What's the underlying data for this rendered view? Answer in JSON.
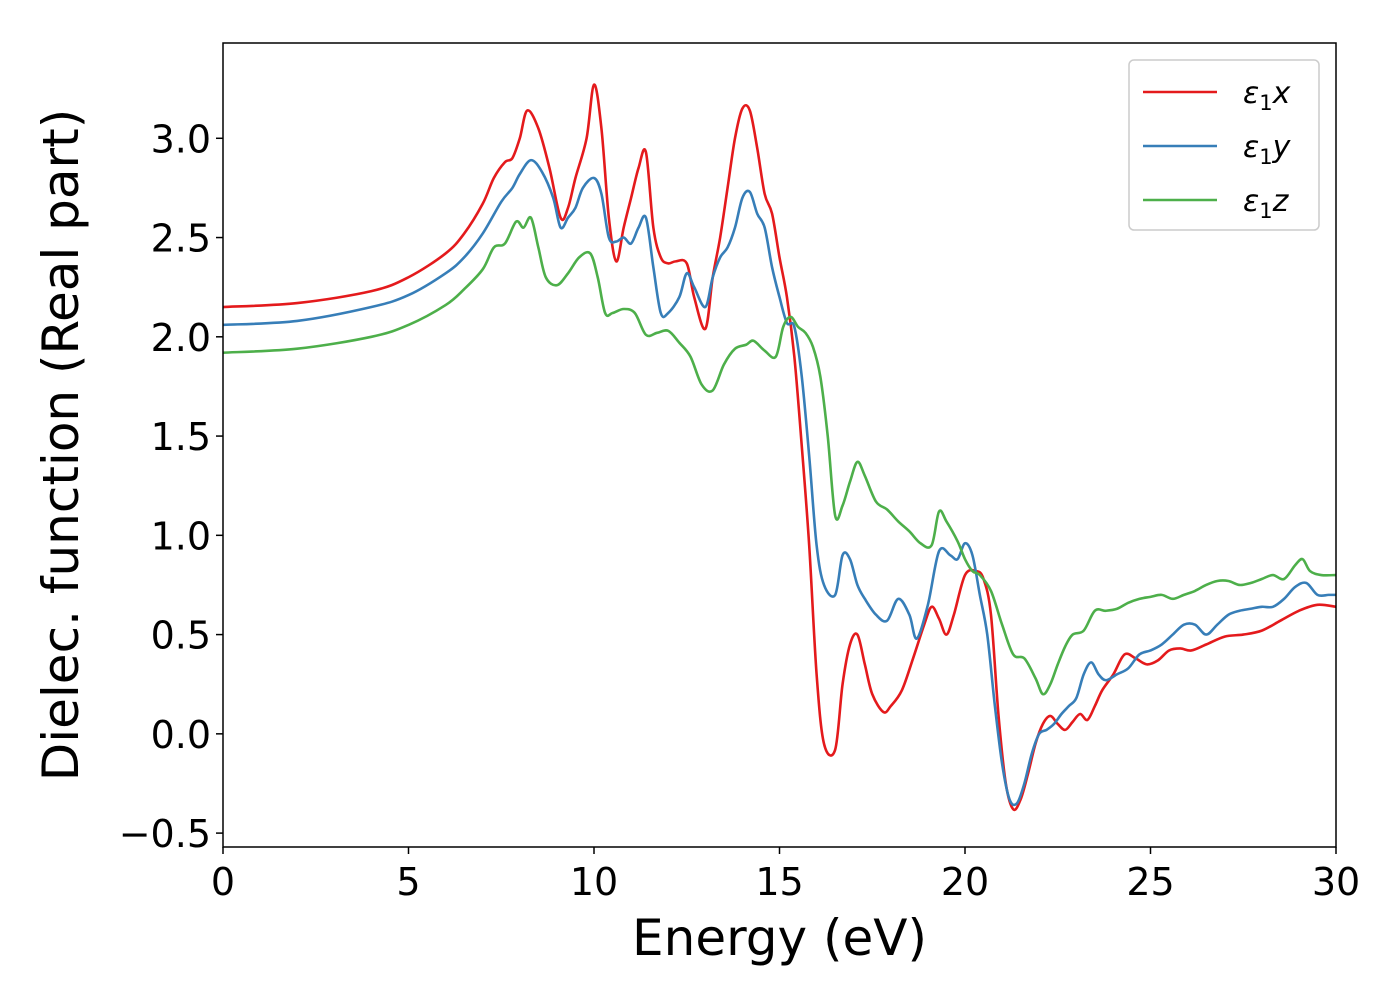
{
  "chart_data": {
    "type": "line",
    "xlabel": "Energy (eV)",
    "ylabel": "Dielec. function (Real part)",
    "xlim": [
      0,
      30
    ],
    "ylim": [
      -0.57,
      3.48
    ],
    "xticks": [
      0,
      5,
      10,
      15,
      20,
      25,
      30
    ],
    "xtick_labels": [
      "0",
      "5",
      "10",
      "15",
      "20",
      "25",
      "30"
    ],
    "yticks": [
      -0.5,
      0.0,
      0.5,
      1.0,
      1.5,
      2.0,
      2.5,
      3.0
    ],
    "ytick_labels": [
      "−0.5",
      "0.0",
      "0.5",
      "1.0",
      "1.5",
      "2.0",
      "2.5",
      "3.0"
    ],
    "grid": false,
    "legend_position": "top-right",
    "series": [
      {
        "name": "ε1x",
        "name_base": "ε",
        "name_sub": "1",
        "name_var": "x",
        "color": "#e41a1c",
        "x": [
          0,
          2,
          4,
          5,
          6,
          6.5,
          7,
          7.3,
          7.6,
          7.8,
          8.0,
          8.2,
          8.5,
          8.8,
          9.1,
          9.3,
          9.5,
          9.8,
          10.0,
          10.2,
          10.4,
          10.6,
          10.8,
          11.0,
          11.2,
          11.4,
          11.6,
          11.8,
          12.0,
          12.2,
          12.5,
          12.7,
          13.0,
          13.2,
          13.4,
          13.6,
          13.8,
          14.0,
          14.2,
          14.4,
          14.6,
          14.8,
          15.0,
          15.2,
          15.4,
          15.6,
          15.8,
          16.0,
          16.2,
          16.5,
          16.7,
          16.9,
          17.1,
          17.3,
          17.5,
          17.8,
          18.0,
          18.3,
          18.6,
          18.9,
          19.1,
          19.3,
          19.5,
          19.7,
          20.0,
          20.3,
          20.5,
          20.7,
          20.9,
          21.1,
          21.3,
          21.5,
          21.7,
          21.9,
          22.1,
          22.3,
          22.5,
          22.7,
          22.9,
          23.1,
          23.3,
          23.5,
          23.7,
          24.0,
          24.3,
          24.6,
          24.9,
          25.2,
          25.5,
          25.8,
          26.1,
          26.5,
          27.0,
          27.5,
          28.0,
          28.5,
          29.0,
          29.5,
          30.0
        ],
        "values": [
          2.15,
          2.17,
          2.23,
          2.3,
          2.42,
          2.52,
          2.67,
          2.8,
          2.88,
          2.9,
          3.0,
          3.14,
          3.05,
          2.85,
          2.6,
          2.65,
          2.8,
          3.0,
          3.27,
          3.05,
          2.6,
          2.38,
          2.55,
          2.7,
          2.85,
          2.93,
          2.55,
          2.4,
          2.37,
          2.38,
          2.37,
          2.2,
          2.04,
          2.3,
          2.5,
          2.75,
          3.0,
          3.15,
          3.14,
          2.95,
          2.72,
          2.62,
          2.4,
          2.2,
          1.9,
          1.45,
          0.95,
          0.3,
          -0.05,
          -0.08,
          0.25,
          0.45,
          0.5,
          0.35,
          0.2,
          0.11,
          0.14,
          0.22,
          0.38,
          0.55,
          0.64,
          0.58,
          0.5,
          0.6,
          0.8,
          0.82,
          0.78,
          0.6,
          0.1,
          -0.25,
          -0.38,
          -0.33,
          -0.2,
          -0.05,
          0.05,
          0.09,
          0.05,
          0.02,
          0.06,
          0.1,
          0.07,
          0.14,
          0.22,
          0.3,
          0.4,
          0.38,
          0.35,
          0.37,
          0.42,
          0.43,
          0.42,
          0.45,
          0.49,
          0.5,
          0.52,
          0.57,
          0.62,
          0.65,
          0.64
        ]
      },
      {
        "name": "ε1y",
        "name_base": "ε",
        "name_sub": "1",
        "name_var": "y",
        "color": "#377eb8",
        "x": [
          0,
          2,
          4,
          5,
          6,
          6.5,
          7,
          7.5,
          7.8,
          8.0,
          8.3,
          8.6,
          8.9,
          9.1,
          9.3,
          9.5,
          9.7,
          10.0,
          10.2,
          10.4,
          10.6,
          10.8,
          11.0,
          11.2,
          11.4,
          11.6,
          11.8,
          12.0,
          12.3,
          12.5,
          12.7,
          13.0,
          13.2,
          13.4,
          13.6,
          13.8,
          14.0,
          14.2,
          14.4,
          14.6,
          14.8,
          15.0,
          15.2,
          15.4,
          15.6,
          15.8,
          16.0,
          16.2,
          16.5,
          16.7,
          16.9,
          17.1,
          17.3,
          17.6,
          17.9,
          18.2,
          18.5,
          18.7,
          19.0,
          19.3,
          19.6,
          19.8,
          20.0,
          20.2,
          20.4,
          20.6,
          20.8,
          21.0,
          21.2,
          21.4,
          21.6,
          21.8,
          22.0,
          22.2,
          22.4,
          22.6,
          22.8,
          23.0,
          23.2,
          23.4,
          23.6,
          23.8,
          24.1,
          24.4,
          24.7,
          25.0,
          25.3,
          25.6,
          25.9,
          26.2,
          26.5,
          26.8,
          27.1,
          27.4,
          27.7,
          28.0,
          28.3,
          28.6,
          28.9,
          29.2,
          29.5,
          29.8,
          30.0
        ],
        "values": [
          2.06,
          2.08,
          2.15,
          2.21,
          2.32,
          2.4,
          2.52,
          2.68,
          2.75,
          2.82,
          2.89,
          2.83,
          2.7,
          2.55,
          2.6,
          2.65,
          2.75,
          2.8,
          2.72,
          2.5,
          2.48,
          2.5,
          2.47,
          2.55,
          2.6,
          2.35,
          2.12,
          2.12,
          2.2,
          2.32,
          2.25,
          2.15,
          2.3,
          2.4,
          2.45,
          2.55,
          2.7,
          2.73,
          2.62,
          2.55,
          2.35,
          2.2,
          2.07,
          2.05,
          1.8,
          1.4,
          0.95,
          0.75,
          0.7,
          0.9,
          0.88,
          0.75,
          0.68,
          0.6,
          0.57,
          0.68,
          0.6,
          0.48,
          0.65,
          0.92,
          0.9,
          0.88,
          0.96,
          0.9,
          0.7,
          0.5,
          0.15,
          -0.15,
          -0.33,
          -0.35,
          -0.25,
          -0.1,
          0.0,
          0.02,
          0.05,
          0.1,
          0.14,
          0.18,
          0.3,
          0.36,
          0.3,
          0.27,
          0.3,
          0.33,
          0.4,
          0.42,
          0.45,
          0.5,
          0.55,
          0.55,
          0.5,
          0.55,
          0.6,
          0.62,
          0.63,
          0.64,
          0.64,
          0.68,
          0.74,
          0.76,
          0.7,
          0.7,
          0.7
        ]
      },
      {
        "name": "ε1z",
        "name_base": "ε",
        "name_sub": "1",
        "name_var": "z",
        "color": "#4daf4a",
        "x": [
          0,
          2,
          4,
          5,
          6,
          6.5,
          7,
          7.3,
          7.6,
          7.9,
          8.1,
          8.3,
          8.5,
          8.7,
          9.0,
          9.3,
          9.6,
          9.9,
          10.1,
          10.3,
          10.5,
          10.8,
          11.1,
          11.4,
          11.7,
          12.0,
          12.3,
          12.6,
          12.9,
          13.2,
          13.5,
          13.8,
          14.1,
          14.3,
          14.6,
          14.9,
          15.1,
          15.3,
          15.5,
          15.7,
          15.9,
          16.1,
          16.3,
          16.5,
          16.7,
          16.9,
          17.1,
          17.3,
          17.6,
          17.9,
          18.2,
          18.5,
          18.8,
          19.1,
          19.3,
          19.5,
          19.8,
          20.0,
          20.2,
          20.4,
          20.7,
          21.0,
          21.3,
          21.6,
          21.9,
          22.1,
          22.3,
          22.5,
          22.7,
          22.9,
          23.2,
          23.5,
          23.8,
          24.1,
          24.4,
          24.7,
          25.0,
          25.3,
          25.6,
          25.9,
          26.2,
          26.5,
          26.8,
          27.1,
          27.4,
          27.7,
          28.0,
          28.3,
          28.6,
          28.9,
          29.1,
          29.3,
          29.6,
          30.0
        ],
        "values": [
          1.92,
          1.94,
          2.0,
          2.06,
          2.16,
          2.24,
          2.34,
          2.45,
          2.47,
          2.58,
          2.55,
          2.6,
          2.45,
          2.3,
          2.26,
          2.32,
          2.4,
          2.42,
          2.3,
          2.12,
          2.12,
          2.14,
          2.12,
          2.01,
          2.02,
          2.03,
          1.97,
          1.9,
          1.76,
          1.73,
          1.86,
          1.94,
          1.96,
          1.98,
          1.93,
          1.9,
          2.05,
          2.1,
          2.05,
          2.02,
          1.95,
          1.8,
          1.5,
          1.1,
          1.15,
          1.27,
          1.37,
          1.3,
          1.17,
          1.13,
          1.07,
          1.02,
          0.96,
          0.95,
          1.12,
          1.07,
          0.97,
          0.88,
          0.82,
          0.8,
          0.72,
          0.55,
          0.4,
          0.38,
          0.28,
          0.2,
          0.25,
          0.35,
          0.44,
          0.5,
          0.52,
          0.62,
          0.62,
          0.63,
          0.66,
          0.68,
          0.69,
          0.7,
          0.68,
          0.7,
          0.72,
          0.75,
          0.77,
          0.77,
          0.75,
          0.76,
          0.78,
          0.8,
          0.78,
          0.85,
          0.88,
          0.82,
          0.8,
          0.8
        ]
      }
    ]
  }
}
